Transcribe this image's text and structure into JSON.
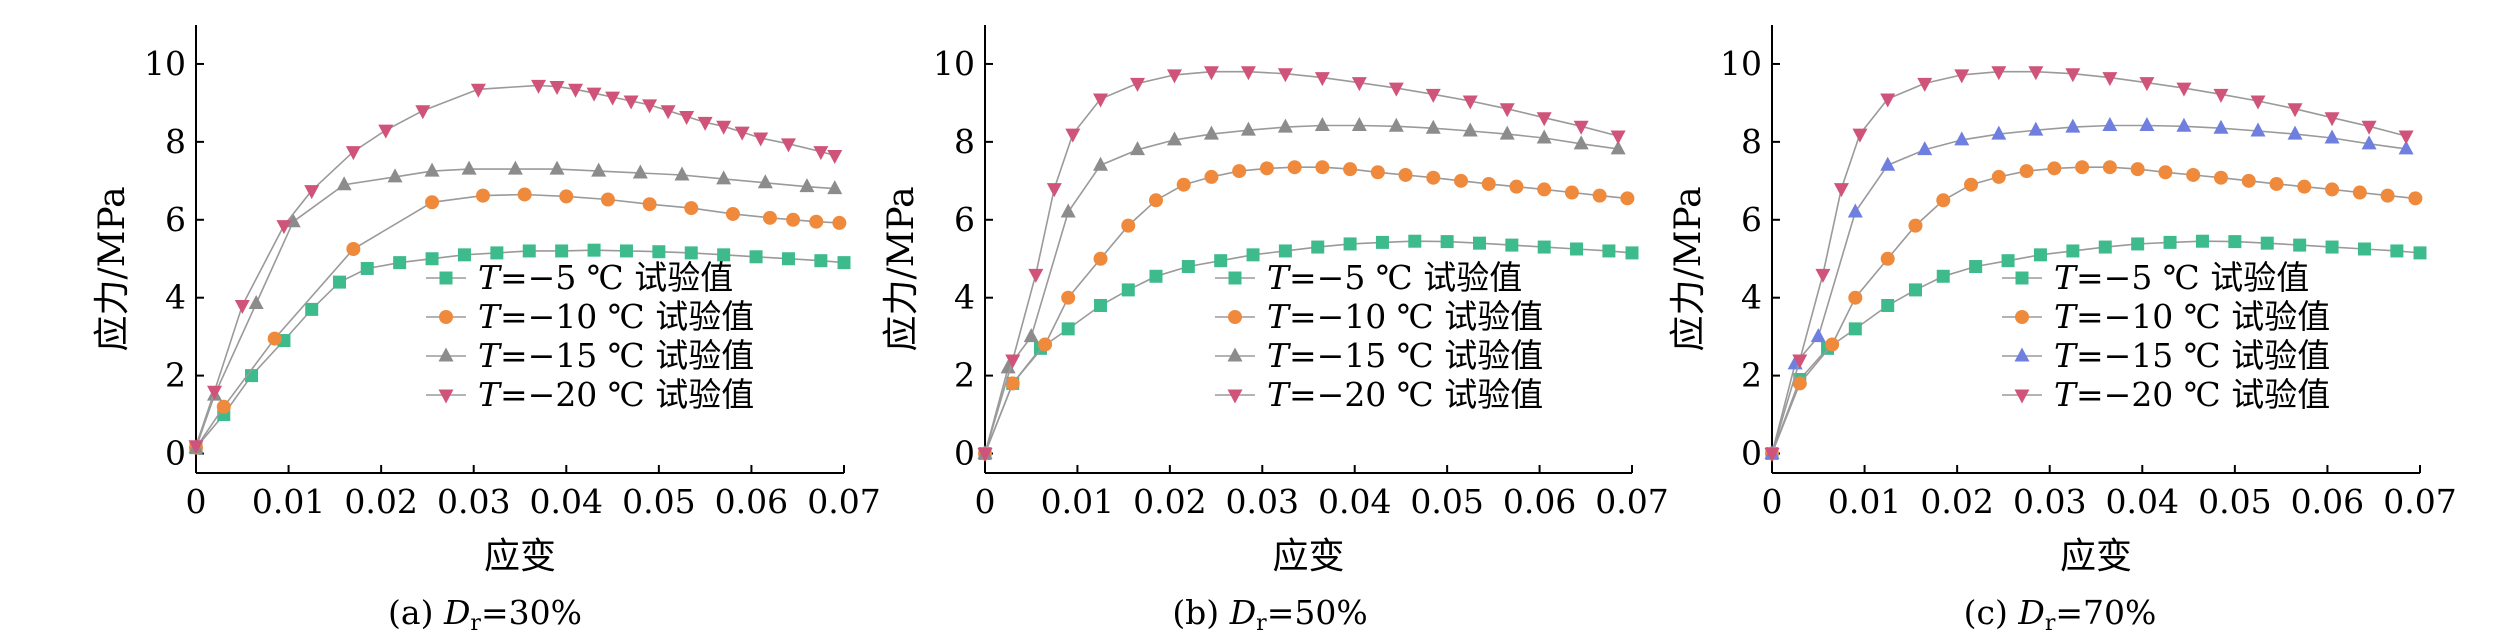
{
  "chart_data": [
    {
      "type": "line",
      "panel_label": "(a)",
      "caption_var": "D",
      "caption_sub": "r",
      "caption_rest": "=30%",
      "xlabel": "应变",
      "ylabel": "应力/MPa",
      "xlim": [
        0,
        0.07
      ],
      "ylim": [
        -0.5,
        11
      ],
      "xticks": [
        "0",
        "0.01",
        "0.02",
        "0.03",
        "0.04",
        "0.05",
        "0.06",
        "0.07"
      ],
      "yticks": [
        "0",
        "2",
        "4",
        "6",
        "8",
        "10"
      ],
      "grid": false,
      "legend_position": "bottom-right",
      "series": [
        {
          "name": "−5 ℃ 试验值",
          "marker": "square",
          "color": "#3dbb8c",
          "x": [
            0,
            0.003,
            0.006,
            0.0095,
            0.0125,
            0.0155,
            0.0185,
            0.022,
            0.0255,
            0.029,
            0.0325,
            0.036,
            0.0395,
            0.043,
            0.0465,
            0.05,
            0.0535,
            0.057,
            0.0605,
            0.064,
            0.0675,
            0.07
          ],
          "y": [
            0.15,
            1.0,
            2.0,
            2.9,
            3.7,
            4.4,
            4.75,
            4.9,
            5.0,
            5.1,
            5.15,
            5.2,
            5.2,
            5.22,
            5.2,
            5.18,
            5.15,
            5.1,
            5.05,
            5.0,
            4.95,
            4.9
          ]
        },
        {
          "name": "−10 ℃ 试验值",
          "marker": "circle",
          "color": "#ef8a3c",
          "x": [
            0,
            0.003,
            0.0085,
            0.017,
            0.0255,
            0.031,
            0.0355,
            0.04,
            0.0445,
            0.049,
            0.0535,
            0.058,
            0.062,
            0.0645,
            0.067,
            0.0695
          ],
          "y": [
            0.15,
            1.2,
            2.95,
            5.25,
            6.45,
            6.62,
            6.65,
            6.6,
            6.52,
            6.4,
            6.3,
            6.15,
            6.05,
            6.0,
            5.95,
            5.92
          ]
        },
        {
          "name": "−15 ℃ 试验值",
          "marker": "triangle",
          "color": "#8c8c8c",
          "x": [
            0,
            0.002,
            0.0065,
            0.0105,
            0.016,
            0.0215,
            0.0255,
            0.0295,
            0.0345,
            0.039,
            0.0435,
            0.048,
            0.0525,
            0.057,
            0.0615,
            0.066,
            0.069
          ],
          "y": [
            0.15,
            1.5,
            3.85,
            5.95,
            6.9,
            7.1,
            7.25,
            7.3,
            7.3,
            7.3,
            7.25,
            7.2,
            7.15,
            7.05,
            6.95,
            6.85,
            6.8
          ]
        },
        {
          "name": "−20 ℃ 试验值",
          "marker": "triangle-down",
          "color": "#d0547a",
          "x": [
            0,
            0.002,
            0.005,
            0.0095,
            0.0125,
            0.017,
            0.0205,
            0.0245,
            0.0305,
            0.037,
            0.039,
            0.041,
            0.043,
            0.045,
            0.047,
            0.049,
            0.051,
            0.053,
            0.055,
            0.057,
            0.059,
            0.061,
            0.064,
            0.0675,
            0.069
          ],
          "y": [
            0.2,
            1.6,
            3.8,
            5.85,
            6.75,
            7.75,
            8.3,
            8.8,
            9.35,
            9.45,
            9.42,
            9.35,
            9.25,
            9.15,
            9.05,
            8.95,
            8.8,
            8.65,
            8.5,
            8.4,
            8.25,
            8.1,
            7.95,
            7.75,
            7.65
          ]
        }
      ]
    },
    {
      "type": "line",
      "panel_label": "(b)",
      "caption_var": "D",
      "caption_sub": "r",
      "caption_rest": "=50%",
      "xlabel": "应变",
      "ylabel": "应力/MPa",
      "xlim": [
        0,
        0.07
      ],
      "ylim": [
        -0.5,
        11
      ],
      "xticks": [
        "0",
        "0.01",
        "0.02",
        "0.03",
        "0.04",
        "0.05",
        "0.06",
        "0.07"
      ],
      "yticks": [
        "0",
        "2",
        "4",
        "6",
        "8",
        "10"
      ],
      "grid": false,
      "legend_position": "bottom-right",
      "series": [
        {
          "name": "−5 ℃ 试验值",
          "marker": "square",
          "color": "#3dbb8c",
          "x": [
            0,
            0.003,
            0.006,
            0.009,
            0.0125,
            0.0155,
            0.0185,
            0.022,
            0.0255,
            0.029,
            0.0325,
            0.036,
            0.0395,
            0.043,
            0.0465,
            0.05,
            0.0535,
            0.057,
            0.0605,
            0.064,
            0.0675,
            0.07
          ],
          "y": [
            0,
            1.8,
            2.7,
            3.2,
            3.8,
            4.2,
            4.55,
            4.8,
            4.95,
            5.1,
            5.2,
            5.3,
            5.38,
            5.42,
            5.45,
            5.44,
            5.4,
            5.35,
            5.3,
            5.25,
            5.2,
            5.15
          ]
        },
        {
          "name": "−10 ℃ 试验值",
          "marker": "circle",
          "color": "#ef8a3c",
          "x": [
            0,
            0.003,
            0.0065,
            0.009,
            0.0125,
            0.0155,
            0.0185,
            0.0215,
            0.0245,
            0.0275,
            0.0305,
            0.0335,
            0.0365,
            0.0395,
            0.0425,
            0.0455,
            0.0485,
            0.0515,
            0.0545,
            0.0575,
            0.0605,
            0.0635,
            0.0665,
            0.0695
          ],
          "y": [
            0,
            1.8,
            2.8,
            4.0,
            5.0,
            5.85,
            6.5,
            6.9,
            7.1,
            7.25,
            7.32,
            7.35,
            7.35,
            7.3,
            7.22,
            7.15,
            7.08,
            7.0,
            6.92,
            6.85,
            6.78,
            6.7,
            6.62,
            6.55
          ]
        },
        {
          "name": "−15 ℃ 试验值",
          "marker": "triangle",
          "color": "#8c8c8c",
          "x": [
            0,
            0.0025,
            0.005,
            0.009,
            0.0125,
            0.0165,
            0.0205,
            0.0245,
            0.0285,
            0.0325,
            0.0365,
            0.0405,
            0.0445,
            0.0485,
            0.0525,
            0.0565,
            0.0605,
            0.0645,
            0.0685
          ],
          "y": [
            0,
            2.2,
            3.0,
            6.2,
            7.4,
            7.8,
            8.05,
            8.2,
            8.3,
            8.38,
            8.42,
            8.42,
            8.4,
            8.35,
            8.28,
            8.2,
            8.1,
            7.95,
            7.82
          ]
        },
        {
          "name": "−20 ℃ 试验值",
          "marker": "triangle-down",
          "color": "#d0547a",
          "x": [
            0,
            0.003,
            0.0055,
            0.0075,
            0.0095,
            0.0125,
            0.0165,
            0.0205,
            0.0245,
            0.0285,
            0.0325,
            0.0365,
            0.0405,
            0.0445,
            0.0485,
            0.0525,
            0.0565,
            0.0605,
            0.0645,
            0.0685
          ],
          "y": [
            0,
            2.4,
            4.6,
            6.8,
            8.2,
            9.1,
            9.5,
            9.72,
            9.8,
            9.8,
            9.75,
            9.65,
            9.52,
            9.38,
            9.22,
            9.05,
            8.85,
            8.62,
            8.4,
            8.15
          ]
        }
      ]
    },
    {
      "type": "line",
      "panel_label": "(c)",
      "caption_var": "D",
      "caption_sub": "r",
      "caption_rest": "=70%",
      "xlabel": "应变",
      "ylabel": "应力/MPa",
      "xlim": [
        0,
        0.07
      ],
      "ylim": [
        -0.5,
        11
      ],
      "xticks": [
        "0",
        "0.01",
        "0.02",
        "0.03",
        "0.04",
        "0.05",
        "0.06",
        "0.07"
      ],
      "yticks": [
        "0",
        "2",
        "4",
        "6",
        "8",
        "10"
      ],
      "grid": false,
      "legend_position": "bottom-right",
      "series": [
        {
          "name": "−5 ℃ 试验值",
          "marker": "square",
          "color": "#3dbb8c",
          "x": [
            0,
            0.003,
            0.006,
            0.009,
            0.0125,
            0.0155,
            0.0185,
            0.022,
            0.0255,
            0.029,
            0.0325,
            0.036,
            0.0395,
            0.043,
            0.0465,
            0.05,
            0.0535,
            0.057,
            0.0605,
            0.064,
            0.0675,
            0.07
          ],
          "y": [
            0,
            1.9,
            2.7,
            3.2,
            3.8,
            4.2,
            4.55,
            4.8,
            4.95,
            5.1,
            5.2,
            5.3,
            5.38,
            5.42,
            5.45,
            5.44,
            5.4,
            5.35,
            5.3,
            5.25,
            5.2,
            5.15
          ]
        },
        {
          "name": "−10 ℃ 试验值",
          "marker": "circle",
          "color": "#ef8a3c",
          "x": [
            0,
            0.003,
            0.0065,
            0.009,
            0.0125,
            0.0155,
            0.0185,
            0.0215,
            0.0245,
            0.0275,
            0.0305,
            0.0335,
            0.0365,
            0.0395,
            0.0425,
            0.0455,
            0.0485,
            0.0515,
            0.0545,
            0.0575,
            0.0605,
            0.0635,
            0.0665,
            0.0695
          ],
          "y": [
            0,
            1.8,
            2.8,
            4.0,
            5.0,
            5.85,
            6.5,
            6.9,
            7.1,
            7.25,
            7.32,
            7.35,
            7.35,
            7.3,
            7.22,
            7.15,
            7.08,
            7.0,
            6.92,
            6.85,
            6.78,
            6.7,
            6.62,
            6.55
          ]
        },
        {
          "name": "−15 ℃ 试验值",
          "marker": "triangle",
          "color": "#6f7fe0",
          "x": [
            0,
            0.0025,
            0.005,
            0.009,
            0.0125,
            0.0165,
            0.0205,
            0.0245,
            0.0285,
            0.0325,
            0.0365,
            0.0405,
            0.0445,
            0.0485,
            0.0525,
            0.0565,
            0.0605,
            0.0645,
            0.0685
          ],
          "y": [
            0,
            2.3,
            3.0,
            6.2,
            7.4,
            7.8,
            8.05,
            8.2,
            8.3,
            8.38,
            8.42,
            8.42,
            8.4,
            8.35,
            8.28,
            8.2,
            8.1,
            7.95,
            7.82
          ]
        },
        {
          "name": "−20 ℃ 试验值",
          "marker": "triangle-down",
          "color": "#d0547a",
          "x": [
            0,
            0.003,
            0.0055,
            0.0075,
            0.0095,
            0.0125,
            0.0165,
            0.0205,
            0.0245,
            0.0285,
            0.0325,
            0.0365,
            0.0405,
            0.0445,
            0.0485,
            0.0525,
            0.0565,
            0.0605,
            0.0645,
            0.0685
          ],
          "y": [
            0,
            2.4,
            4.6,
            6.8,
            8.2,
            9.1,
            9.5,
            9.72,
            9.8,
            9.8,
            9.75,
            9.65,
            9.52,
            9.38,
            9.22,
            9.05,
            8.85,
            8.62,
            8.4,
            8.15
          ]
        }
      ]
    }
  ]
}
